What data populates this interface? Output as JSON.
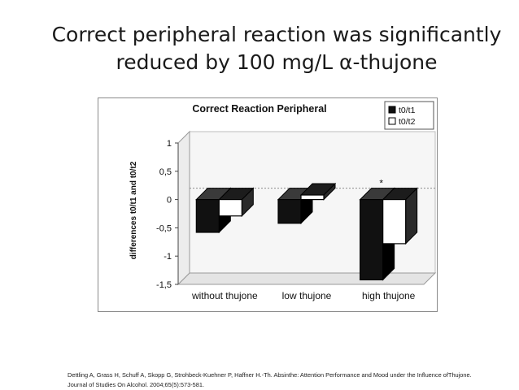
{
  "slide": {
    "title_line1": "Correct peripheral reaction was significantly",
    "title_line2": "reduced by 100 mg/L α-thujone",
    "citation_line1": "Dettling A, Grass H, Schuff A, Skopp G, Strohbeck-Kuehner P, Haffner H.-Th. Absinthe: Attention Performance and Mood under the Influence ofThujone.",
    "citation_line2": "Journal of Studies On Alcohol. 2004;65(5):573-581."
  },
  "chart_data": {
    "type": "bar",
    "title": "Correct Reaction Peripheral",
    "ylabel": "differences t0/t1 and t0/t2",
    "xlabel": "",
    "categories": [
      "without thujone",
      "low thujone",
      "high thujone"
    ],
    "series": [
      {
        "name": "t0/t1",
        "values": [
          -0.58,
          -0.42,
          -1.42
        ],
        "color": "#111111"
      },
      {
        "name": "t0/t2",
        "values": [
          -0.29,
          0.08,
          -0.78
        ],
        "color": "#ffffff"
      }
    ],
    "ylim": [
      -1.5,
      1
    ],
    "yticks": [
      "1",
      "0,5",
      "0",
      "-0,5",
      "-1",
      "-1,5"
    ],
    "ytick_values": [
      1,
      0.5,
      0,
      -0.5,
      -1,
      -1.5
    ],
    "annotations": [
      {
        "text": "*",
        "category": "high thujone"
      }
    ],
    "legend_position": "top-right",
    "grid": false,
    "style": "3d"
  }
}
